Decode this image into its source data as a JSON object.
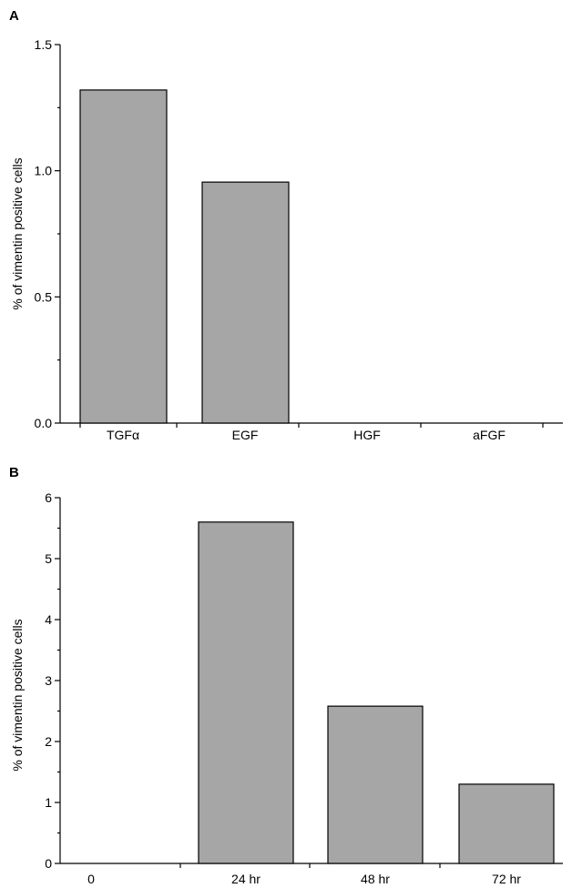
{
  "chart_data": [
    {
      "panel": "A",
      "type": "bar",
      "categories": [
        "TGFα",
        "EGF",
        "HGF",
        "aFGF"
      ],
      "values": [
        1.32,
        0.955,
        0,
        0
      ],
      "ylabel": "% of vimentin positive cells",
      "xlabel": "",
      "ylim": [
        0,
        1.5
      ],
      "major_ticks": [
        "0.0",
        "0.5",
        "1.0",
        "1.5"
      ],
      "bar_fill": "#a6a6a6",
      "grid": false
    },
    {
      "panel": "B",
      "type": "bar",
      "categories": [
        "0",
        "24 hr",
        "48 hr",
        "72 hr"
      ],
      "values": [
        0,
        5.6,
        2.58,
        1.3
      ],
      "ylabel": "% of vimentin positive cells",
      "xlabel": "",
      "ylim": [
        0,
        6
      ],
      "major_ticks": [
        "0",
        "1",
        "2",
        "3",
        "4",
        "5",
        "6"
      ],
      "bar_fill": "#a6a6a6",
      "grid": false
    }
  ]
}
